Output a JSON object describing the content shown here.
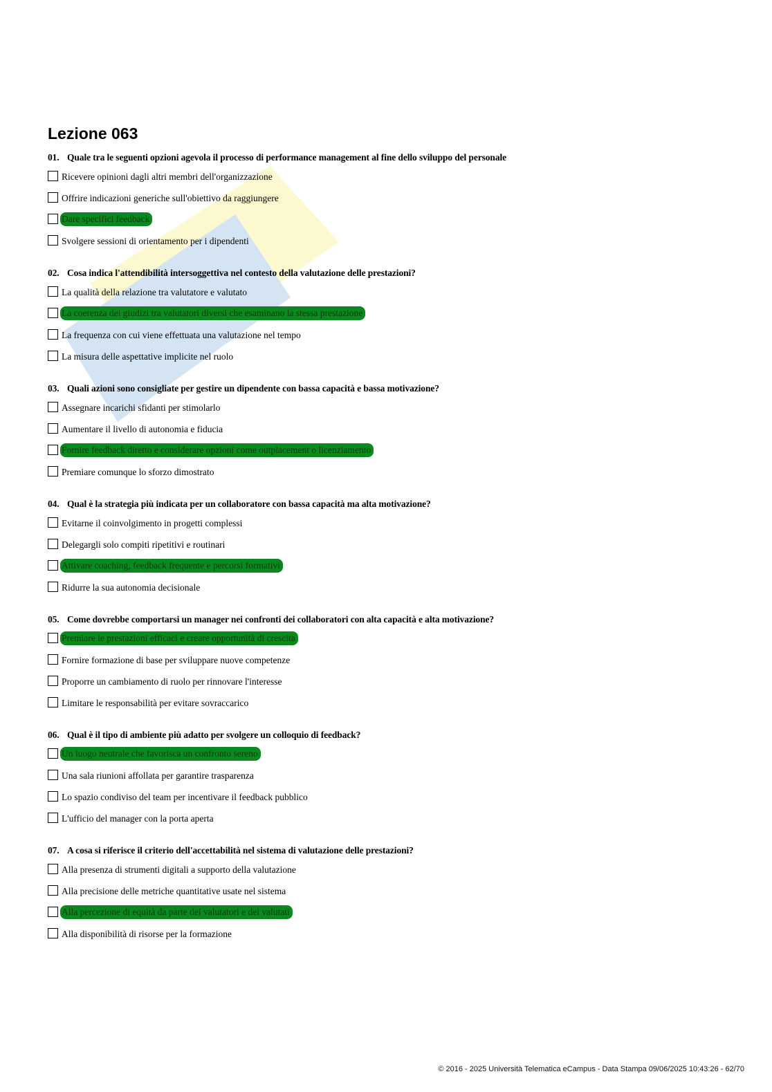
{
  "page_title": "Lezione 063",
  "questions": [
    {
      "number": "01.",
      "text": "Quale tra le seguenti opzioni agevola il processo di performance management al fine dello sviluppo del personale",
      "options": [
        {
          "text": "Ricevere opinioni dagli altri membri dell'organizzazione",
          "correct": false
        },
        {
          "text": "Offrire indicazioni generiche sull'obiettivo da raggiungere",
          "correct": false
        },
        {
          "text": "Dare specifici feedback",
          "correct": true
        },
        {
          "text": "Svolgere sessioni di orientamento per i dipendenti",
          "correct": false
        }
      ]
    },
    {
      "number": "02.",
      "text": "Cosa indica l'attendibilità intersoggettiva nel contesto della valutazione delle prestazioni?",
      "options": [
        {
          "text": "La qualità della relazione tra valutatore e valutato",
          "correct": false
        },
        {
          "text": "La coerenza dei giudizi tra valutatori diversi che esaminano la stessa prestazione",
          "correct": true
        },
        {
          "text": "La frequenza con cui viene effettuata una valutazione nel tempo",
          "correct": false
        },
        {
          "text": "La misura delle aspettative implicite nel ruolo",
          "correct": false
        }
      ]
    },
    {
      "number": "03.",
      "text": "Quali azioni sono consigliate per gestire un dipendente con bassa capacità e bassa motivazione?",
      "options": [
        {
          "text": "Assegnare incarichi sfidanti per stimolarlo",
          "correct": false
        },
        {
          "text": "Aumentare il livello di autonomia e fiducia",
          "correct": false
        },
        {
          "text": "Fornire feedback diretto e considerare opzioni come outplacement o licenziamento",
          "correct": true
        },
        {
          "text": "Premiare comunque lo sforzo dimostrato",
          "correct": false
        }
      ]
    },
    {
      "number": "04.",
      "text": "Qual è la strategia più indicata per un collaboratore con bassa capacità ma alta motivazione?",
      "options": [
        {
          "text": "Evitarne il coinvolgimento in progetti complessi",
          "correct": false
        },
        {
          "text": "Delegargli solo compiti ripetitivi e routinari",
          "correct": false
        },
        {
          "text": "Attivare coaching, feedback frequente e percorsi formativi",
          "correct": true
        },
        {
          "text": "Ridurre la sua autonomia decisionale",
          "correct": false
        }
      ]
    },
    {
      "number": "05.",
      "text": "Come dovrebbe comportarsi un manager nei confronti dei collaboratori con alta capacità e alta motivazione?",
      "options": [
        {
          "text": "Premiare le prestazioni efficaci e creare opportunità di crescita",
          "correct": true
        },
        {
          "text": "Fornire formazione di base per sviluppare nuove competenze",
          "correct": false
        },
        {
          "text": "Proporre un cambiamento di ruolo per rinnovare l'interesse",
          "correct": false
        },
        {
          "text": "Limitare le responsabilità per evitare sovraccarico",
          "correct": false
        }
      ]
    },
    {
      "number": "06.",
      "text": "Qual è il tipo di ambiente più adatto per svolgere un colloquio di feedback?",
      "options": [
        {
          "text": "Un luogo neutrale che favorisca un confronto sereno",
          "correct": true
        },
        {
          "text": "Una sala riunioni affollata per garantire trasparenza",
          "correct": false
        },
        {
          "text": "Lo spazio condiviso del team per incentivare il feedback pubblico",
          "correct": false
        },
        {
          "text": "L'ufficio del manager con la porta aperta",
          "correct": false
        }
      ]
    },
    {
      "number": "07.",
      "text": "A cosa si riferisce il criterio dell'accettabilità nel sistema di valutazione delle prestazioni?",
      "options": [
        {
          "text": "Alla presenza di strumenti digitali a supporto della valutazione",
          "correct": false
        },
        {
          "text": "Alla precisione delle metriche quantitative usate nel sistema",
          "correct": false
        },
        {
          "text": "Alla percezione di equità da parte dei valutatori e dei valutati",
          "correct": true
        },
        {
          "text": "Alla disponibilità di risorse per la formazione",
          "correct": false
        }
      ]
    }
  ],
  "highlight_color": "#0a8a1e",
  "footer": "© 2016 - 2025 Università Telematica eCampus - Data Stampa 09/06/2025 10:43:26 - 62/70"
}
